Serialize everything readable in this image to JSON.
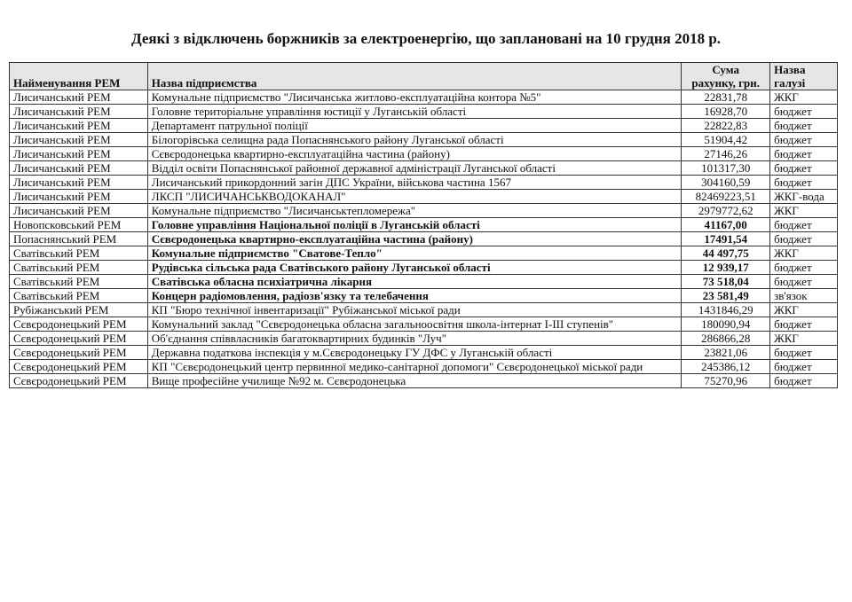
{
  "title": "Деякі з відключень боржників за електроенергію, що заплановані на 10 грудня 2018 р.",
  "table": {
    "headers": [
      "Найменування РЕМ",
      "Назва підприємства",
      "Сума рахунку, грн.",
      "Назва галузі"
    ],
    "header_lines": {
      "sum_1": "Сума",
      "sum_2": "рахунку, грн.",
      "branch_1": "Назва",
      "branch_2": "галузі"
    },
    "rows": [
      {
        "rem": "Лисичанський РЕМ",
        "name": "Комунальне підприємство \"Лисичанська житлово-експлуатаційна контора №5\"",
        "sum": "22831,78",
        "branch": "ЖКГ",
        "bold": false
      },
      {
        "rem": "Лисичанський РЕМ",
        "name": "Головне територіальне управління юстиції у Луганській області",
        "sum": "16928,70",
        "branch": "бюджет",
        "bold": false
      },
      {
        "rem": "Лисичанський РЕМ",
        "name": "Департамент патрульної поліції",
        "sum": "22822,83",
        "branch": "бюджет",
        "bold": false
      },
      {
        "rem": "Лисичанський РЕМ",
        "name": "Білогорівська селищна рада Попаснянського району Луганської області",
        "sum": "51904,42",
        "branch": "бюджет",
        "bold": false
      },
      {
        "rem": "Лисичанський РЕМ",
        "name": "Сєвєродонецька квартирно-експлуатаційна частина (району)",
        "sum": "27146,26",
        "branch": "бюджет",
        "bold": false
      },
      {
        "rem": "Лисичанський РЕМ",
        "name": "Відділ освіти Попаснянської районної державної адміністрації Луганської області",
        "sum": "101317,30",
        "branch": "бюджет",
        "bold": false
      },
      {
        "rem": "Лисичанський РЕМ",
        "name": "Лисичанський прикордонний загін ДПС України, військова частина 1567",
        "sum": "304160,59",
        "branch": "бюджет",
        "bold": false
      },
      {
        "rem": "Лисичанський РЕМ",
        "name": "ЛКСП \"ЛИСИЧАНСЬКВОДОКАНАЛ\"",
        "sum": "82469223,51",
        "branch": "ЖКГ-вода",
        "bold": false
      },
      {
        "rem": "Лисичанський РЕМ",
        "name": "Комунальне підприємство \"Лисичанськтепломережа\"",
        "sum": "2979772,62",
        "branch": "ЖКГ",
        "bold": false
      },
      {
        "rem": "Новопсковський РЕМ",
        "name": "Головне управління Національної поліції в Луганській області",
        "sum": "41167,00",
        "branch": "бюджет",
        "bold": true
      },
      {
        "rem": "Попаснянський  РЕМ",
        "name": "Сєвєродонецька квартирно-експлуатаційна частина (району)",
        "sum": "17491,54",
        "branch": "бюджет",
        "bold": true
      },
      {
        "rem": "Сватівський  РЕМ",
        "name": "Комунальне підприємство \"Сватове-Тепло\"",
        "sum": "44 497,75",
        "branch": "ЖКГ",
        "bold": true
      },
      {
        "rem": "Сватівський  РЕМ",
        "name": "Рудівська сільська рада Сватівського району Луганської області",
        "sum": "12 939,17",
        "branch": "бюджет",
        "bold": true
      },
      {
        "rem": "Сватівський  РЕМ",
        "name": "Сватівська обласна психіатрична лікарня",
        "sum": "73 518,04",
        "branch": "бюджет",
        "bold": true
      },
      {
        "rem": "Сватівський  РЕМ",
        "name": "Концерн радіомовлення, радіозв'язку та телебачення",
        "sum": "23 581,49",
        "branch": "зв'язок",
        "bold": true
      },
      {
        "rem": "Рубіжанський РЕМ",
        "name": "КП \"Бюро технічної інвентаризації\" Рубіжанської міської ради",
        "sum": "1431846,29",
        "branch": "ЖКГ",
        "bold": false
      },
      {
        "rem": "Сєвєродонецький РЕМ",
        "name": "Комунальний заклад  \"Сєвєродонецька обласна загальноосвітня школа-інтернат І-ІІІ ступенів\"",
        "sum": "180090,94",
        "branch": "бюджет",
        "bold": false
      },
      {
        "rem": "Сєвєродонецький РЕМ",
        "name": "Об'єднання співвласників багатоквартирних будинків \"Луч\"",
        "sum": "286866,28",
        "branch": "ЖКГ",
        "bold": false
      },
      {
        "rem": "Сєвєродонецький РЕМ",
        "name": "Державна податкова інспекція у м.Сєвєродонецьку ГУ ДФС у Луганській області",
        "sum": "23821,06",
        "branch": "бюджет",
        "bold": false
      },
      {
        "rem": "Сєвєродонецький РЕМ",
        "name": "КП \"Сєвєродонецький центр первинної медико-санітарної допомоги\" Сєвєродонецької міської ради",
        "sum": "245386,12",
        "branch": "бюджет",
        "bold": false
      },
      {
        "rem": "Сєвєродонецький РЕМ",
        "name": "Вище професійне училище №92 м. Сєвєродонецька",
        "sum": "75270,96",
        "branch": "бюджет",
        "bold": false
      }
    ]
  }
}
